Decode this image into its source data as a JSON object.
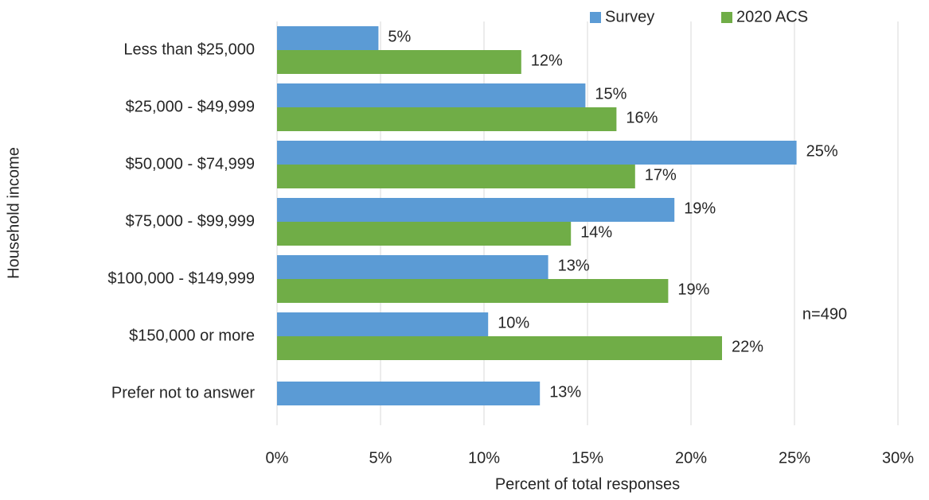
{
  "chart_data": {
    "type": "bar",
    "orientation": "horizontal",
    "categories": [
      "Less than $25,000",
      "$25,000 - $49,999",
      "$50,000 - $74,999",
      "$75,000 - $99,999",
      "$100,000 - $149,999",
      "$150,000 or more",
      "Prefer not to answer"
    ],
    "series": [
      {
        "name": "Survey",
        "color": "#5b9bd5",
        "values": [
          4.9,
          14.9,
          25.1,
          19.2,
          13.1,
          10.2,
          12.7
        ],
        "value_labels": [
          "5%",
          "15%",
          "25%",
          "19%",
          "13%",
          "10%",
          "13%"
        ]
      },
      {
        "name": "2020 ACS",
        "color": "#70ad47",
        "values": [
          11.8,
          16.4,
          17.3,
          14.2,
          18.9,
          21.5,
          null
        ],
        "value_labels": [
          "12%",
          "16%",
          "17%",
          "14%",
          "19%",
          "22%",
          null
        ]
      }
    ],
    "xlabel": "Percent of total responses",
    "ylabel": "Household income",
    "xlim": [
      0,
      30
    ],
    "xticks": [
      {
        "value": 0,
        "label": "0%"
      },
      {
        "value": 5,
        "label": "5%"
      },
      {
        "value": 10,
        "label": "10%"
      },
      {
        "value": 15,
        "label": "15%"
      },
      {
        "value": 20,
        "label": "20%"
      },
      {
        "value": 25,
        "label": "25%"
      },
      {
        "value": 30,
        "label": "30%"
      }
    ],
    "grid": true,
    "legend": "top-right",
    "annotations": [
      "n=490"
    ]
  }
}
